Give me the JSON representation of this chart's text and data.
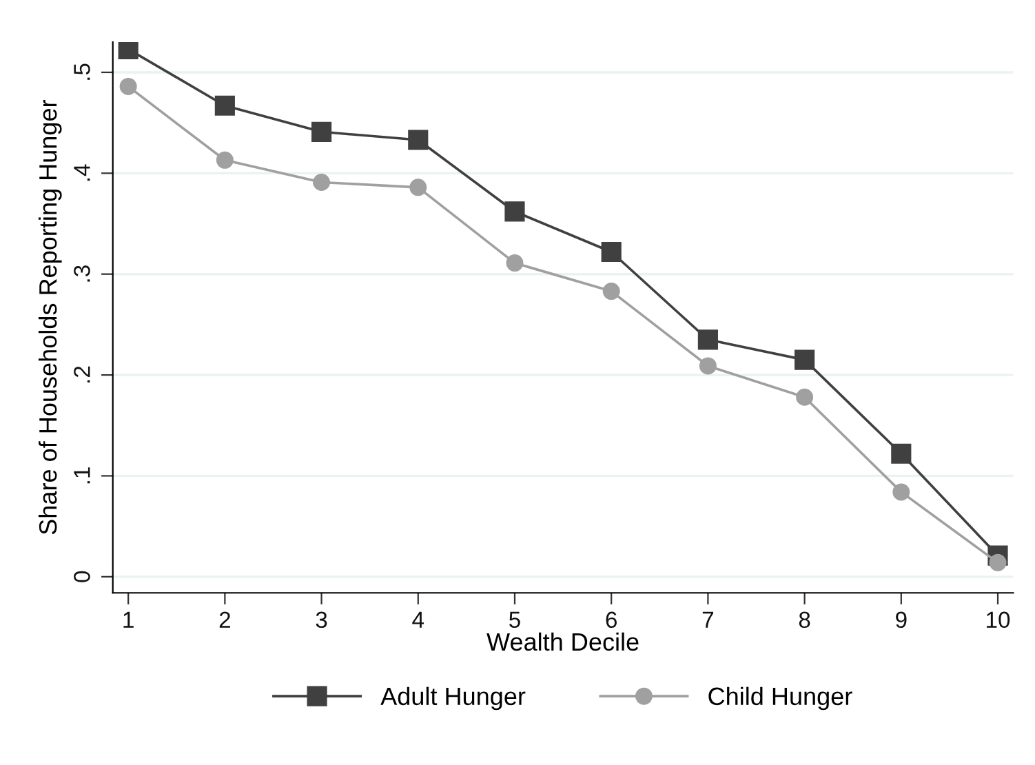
{
  "chart_data": {
    "type": "line",
    "xlabel": "Wealth Decile",
    "ylabel": "Share of Households Reporting Hunger",
    "x": [
      1,
      2,
      3,
      4,
      5,
      6,
      7,
      8,
      9,
      10
    ],
    "series": [
      {
        "name": "Adult Hunger",
        "color": "#404040",
        "marker": "square",
        "values": [
          0.523,
          0.467,
          0.441,
          0.433,
          0.362,
          0.322,
          0.235,
          0.215,
          0.122,
          0.021
        ]
      },
      {
        "name": "Child Hunger",
        "color": "#a0a0a0",
        "marker": "circle",
        "values": [
          0.486,
          0.413,
          0.391,
          0.386,
          0.311,
          0.283,
          0.209,
          0.178,
          0.084,
          0.014
        ]
      }
    ],
    "xlim": [
      0.84,
      10.16
    ],
    "xticks": [
      1,
      2,
      3,
      4,
      5,
      6,
      7,
      8,
      9,
      10
    ],
    "ylim": [
      -0.016,
      0.53
    ],
    "yticks": [
      {
        "value": 0,
        "label": "0"
      },
      {
        "value": 0.1,
        "label": ".1"
      },
      {
        "value": 0.2,
        "label": ".2"
      },
      {
        "value": 0.3,
        "label": ".3"
      },
      {
        "value": 0.4,
        "label": ".4"
      },
      {
        "value": 0.5,
        "label": ".5"
      }
    ],
    "grid": "y",
    "legend": "bottom",
    "line_style": "solid"
  }
}
